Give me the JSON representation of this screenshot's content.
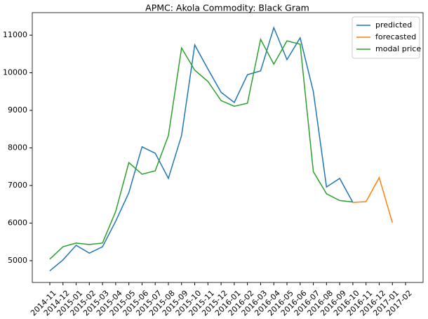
{
  "chart_data": {
    "type": "line",
    "title": "APMC: Akola  Commodity: Black Gram",
    "categories": [
      "2014-11",
      "2014-12",
      "2015-01",
      "2015-02",
      "2015-03",
      "2015-04",
      "2015-05",
      "2015-06",
      "2015-07",
      "2015-08",
      "2015-09",
      "2015-10",
      "2015-11",
      "2015-12",
      "2016-01",
      "2016-02",
      "2016-03",
      "2016-04",
      "2016-05",
      "2016-06",
      "2016-07",
      "2016-08",
      "2016-09",
      "2016-10",
      "2016-11",
      "2016-12",
      "2017-01",
      "2017-02"
    ],
    "series": [
      {
        "name": "predicted",
        "color": "#1f77b4",
        "values": [
          4730,
          5020,
          5410,
          5200,
          5370,
          6050,
          6810,
          8030,
          7860,
          7190,
          8330,
          10740,
          10100,
          9480,
          9210,
          9950,
          10050,
          11200,
          10350,
          10930,
          9500,
          6960,
          7190,
          6550,
          null,
          null,
          null,
          null
        ]
      },
      {
        "name": "forecasted",
        "color": "#ff7f0e",
        "values": [
          null,
          null,
          null,
          null,
          null,
          null,
          null,
          null,
          null,
          null,
          null,
          null,
          null,
          null,
          null,
          null,
          null,
          null,
          null,
          null,
          null,
          null,
          null,
          6550,
          6570,
          7210,
          6010,
          null
        ]
      },
      {
        "name": "modal price",
        "color": "#2ca02c",
        "values": [
          5040,
          5370,
          5470,
          5430,
          5470,
          6310,
          7610,
          7300,
          7390,
          8330,
          10660,
          10070,
          9770,
          9260,
          9110,
          9190,
          10890,
          10230,
          10850,
          10760,
          7370,
          6780,
          6600,
          6560,
          null,
          null,
          null,
          null
        ]
      }
    ],
    "ylim": [
      4420,
      11600
    ],
    "yticks": [
      5000,
      6000,
      7000,
      8000,
      9000,
      10000,
      11000
    ],
    "legend": "upper right"
  }
}
